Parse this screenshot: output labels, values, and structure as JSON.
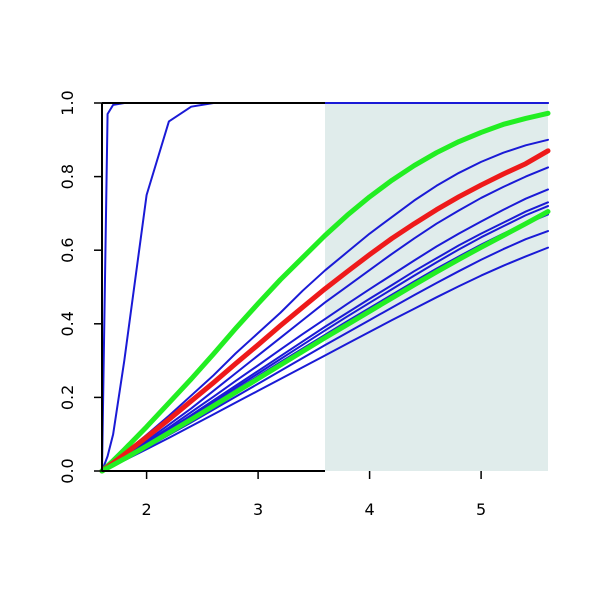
{
  "chart_data": {
    "type": "line",
    "title": "",
    "xlabel": "",
    "ylabel": "",
    "xlim": [
      1.6,
      5.6
    ],
    "ylim": [
      0.0,
      1.0
    ],
    "x_ticks": [
      2,
      3,
      4,
      5
    ],
    "y_ticks": [
      0.0,
      0.2,
      0.4,
      0.6,
      0.8,
      1.0
    ],
    "x_tick_labels": [
      "2",
      "3",
      "4",
      "5"
    ],
    "y_tick_labels": [
      "0.0",
      "0.2",
      "0.4",
      "0.6",
      "0.8",
      "1.0"
    ],
    "grid": false,
    "shaded_region": {
      "x_from": 3.6,
      "x_to": 5.6,
      "color": "#e0eceb"
    },
    "x": [
      1.6,
      1.65,
      1.7,
      1.8,
      2.0,
      2.2,
      2.4,
      2.6,
      2.8,
      3.0,
      3.2,
      3.4,
      3.6,
      3.8,
      4.0,
      4.2,
      4.4,
      4.6,
      4.8,
      5.0,
      5.2,
      5.4,
      5.6
    ],
    "series": [
      {
        "color": "#1a1ad6",
        "width": 2,
        "values": [
          0.0,
          0.97,
          0.995,
          1.0,
          1.0,
          1.0,
          1.0,
          1.0,
          1.0,
          1.0,
          1.0,
          1.0,
          1.0,
          1.0,
          1.0,
          1.0,
          1.0,
          1.0,
          1.0,
          1.0,
          1.0,
          1.0,
          1.0
        ]
      },
      {
        "color": "#1a1ad6",
        "width": 2,
        "values": [
          0.0,
          0.04,
          0.1,
          0.3,
          0.75,
          0.95,
          0.99,
          1.0,
          1.0,
          1.0,
          1.0,
          1.0,
          1.0,
          1.0,
          1.0,
          1.0,
          1.0,
          1.0,
          1.0,
          1.0,
          1.0,
          1.0,
          1.0
        ]
      },
      {
        "color": "#1a1ad6",
        "width": 2,
        "values": [
          0.0,
          0.012,
          0.024,
          0.048,
          0.098,
          0.15,
          0.205,
          0.26,
          0.32,
          0.375,
          0.43,
          0.49,
          0.545,
          0.595,
          0.645,
          0.69,
          0.735,
          0.775,
          0.81,
          0.84,
          0.865,
          0.885,
          0.9
        ]
      },
      {
        "color": "#1a1ad6",
        "width": 2,
        "values": [
          0.0,
          0.01,
          0.02,
          0.04,
          0.082,
          0.126,
          0.17,
          0.218,
          0.266,
          0.314,
          0.362,
          0.41,
          0.458,
          0.502,
          0.546,
          0.59,
          0.632,
          0.672,
          0.708,
          0.742,
          0.772,
          0.8,
          0.825
        ]
      },
      {
        "color": "#1a1ad6",
        "width": 2,
        "values": [
          0.0,
          0.009,
          0.018,
          0.036,
          0.074,
          0.113,
          0.152,
          0.192,
          0.232,
          0.272,
          0.312,
          0.352,
          0.392,
          0.43,
          0.468,
          0.505,
          0.543,
          0.578,
          0.613,
          0.645,
          0.675,
          0.705,
          0.73
        ]
      },
      {
        "color": "#1a1ad6",
        "width": 2,
        "values": [
          0.0,
          0.0088,
          0.0176,
          0.0352,
          0.072,
          0.11,
          0.148,
          0.187,
          0.226,
          0.265,
          0.304,
          0.343,
          0.382,
          0.42,
          0.457,
          0.494,
          0.531,
          0.567,
          0.602,
          0.635,
          0.665,
          0.695,
          0.72
        ]
      },
      {
        "color": "#1a1ad6",
        "width": 2,
        "values": [
          0.0,
          0.0085,
          0.017,
          0.034,
          0.07,
          0.107,
          0.144,
          0.182,
          0.22,
          0.258,
          0.296,
          0.333,
          0.37,
          0.407,
          0.443,
          0.479,
          0.515,
          0.55,
          0.583,
          0.615,
          0.645,
          0.672,
          0.697
        ]
      },
      {
        "color": "#1a1ad6",
        "width": 2,
        "values": [
          0.0,
          0.0078,
          0.0156,
          0.0312,
          0.064,
          0.098,
          0.132,
          0.167,
          0.202,
          0.237,
          0.272,
          0.307,
          0.342,
          0.376,
          0.41,
          0.444,
          0.478,
          0.511,
          0.543,
          0.574,
          0.603,
          0.63,
          0.652
        ]
      },
      {
        "color": "#1a1ad6",
        "width": 2,
        "values": [
          0.0,
          0.0072,
          0.0144,
          0.0288,
          0.059,
          0.09,
          0.122,
          0.154,
          0.186,
          0.218,
          0.25,
          0.282,
          0.314,
          0.346,
          0.378,
          0.41,
          0.441,
          0.472,
          0.502,
          0.531,
          0.558,
          0.583,
          0.607
        ]
      },
      {
        "color": "#1a1ad6",
        "width": 2,
        "values": [
          0.0,
          0.0095,
          0.019,
          0.038,
          0.078,
          0.118,
          0.16,
          0.202,
          0.245,
          0.287,
          0.33,
          0.372,
          0.413,
          0.454,
          0.494,
          0.533,
          0.572,
          0.61,
          0.645,
          0.678,
          0.71,
          0.74,
          0.765
        ]
      },
      {
        "color": "#22ee22",
        "width": 5,
        "values": [
          0.0,
          0.014,
          0.028,
          0.058,
          0.12,
          0.185,
          0.25,
          0.318,
          0.388,
          0.455,
          0.52,
          0.58,
          0.64,
          0.695,
          0.745,
          0.79,
          0.83,
          0.865,
          0.895,
          0.92,
          0.942,
          0.958,
          0.972
        ]
      },
      {
        "color": "#ee1a1a",
        "width": 5,
        "values": [
          0.0,
          0.011,
          0.022,
          0.045,
          0.092,
          0.14,
          0.19,
          0.24,
          0.292,
          0.343,
          0.395,
          0.445,
          0.495,
          0.542,
          0.588,
          0.632,
          0.672,
          0.71,
          0.745,
          0.777,
          0.807,
          0.835,
          0.87
        ]
      },
      {
        "color": "#22ee22",
        "width": 5,
        "values": [
          0.0,
          0.0083,
          0.0166,
          0.033,
          0.068,
          0.104,
          0.14,
          0.177,
          0.214,
          0.251,
          0.288,
          0.325,
          0.362,
          0.398,
          0.434,
          0.47,
          0.506,
          0.541,
          0.575,
          0.608,
          0.64,
          0.672,
          0.705
        ]
      }
    ]
  }
}
